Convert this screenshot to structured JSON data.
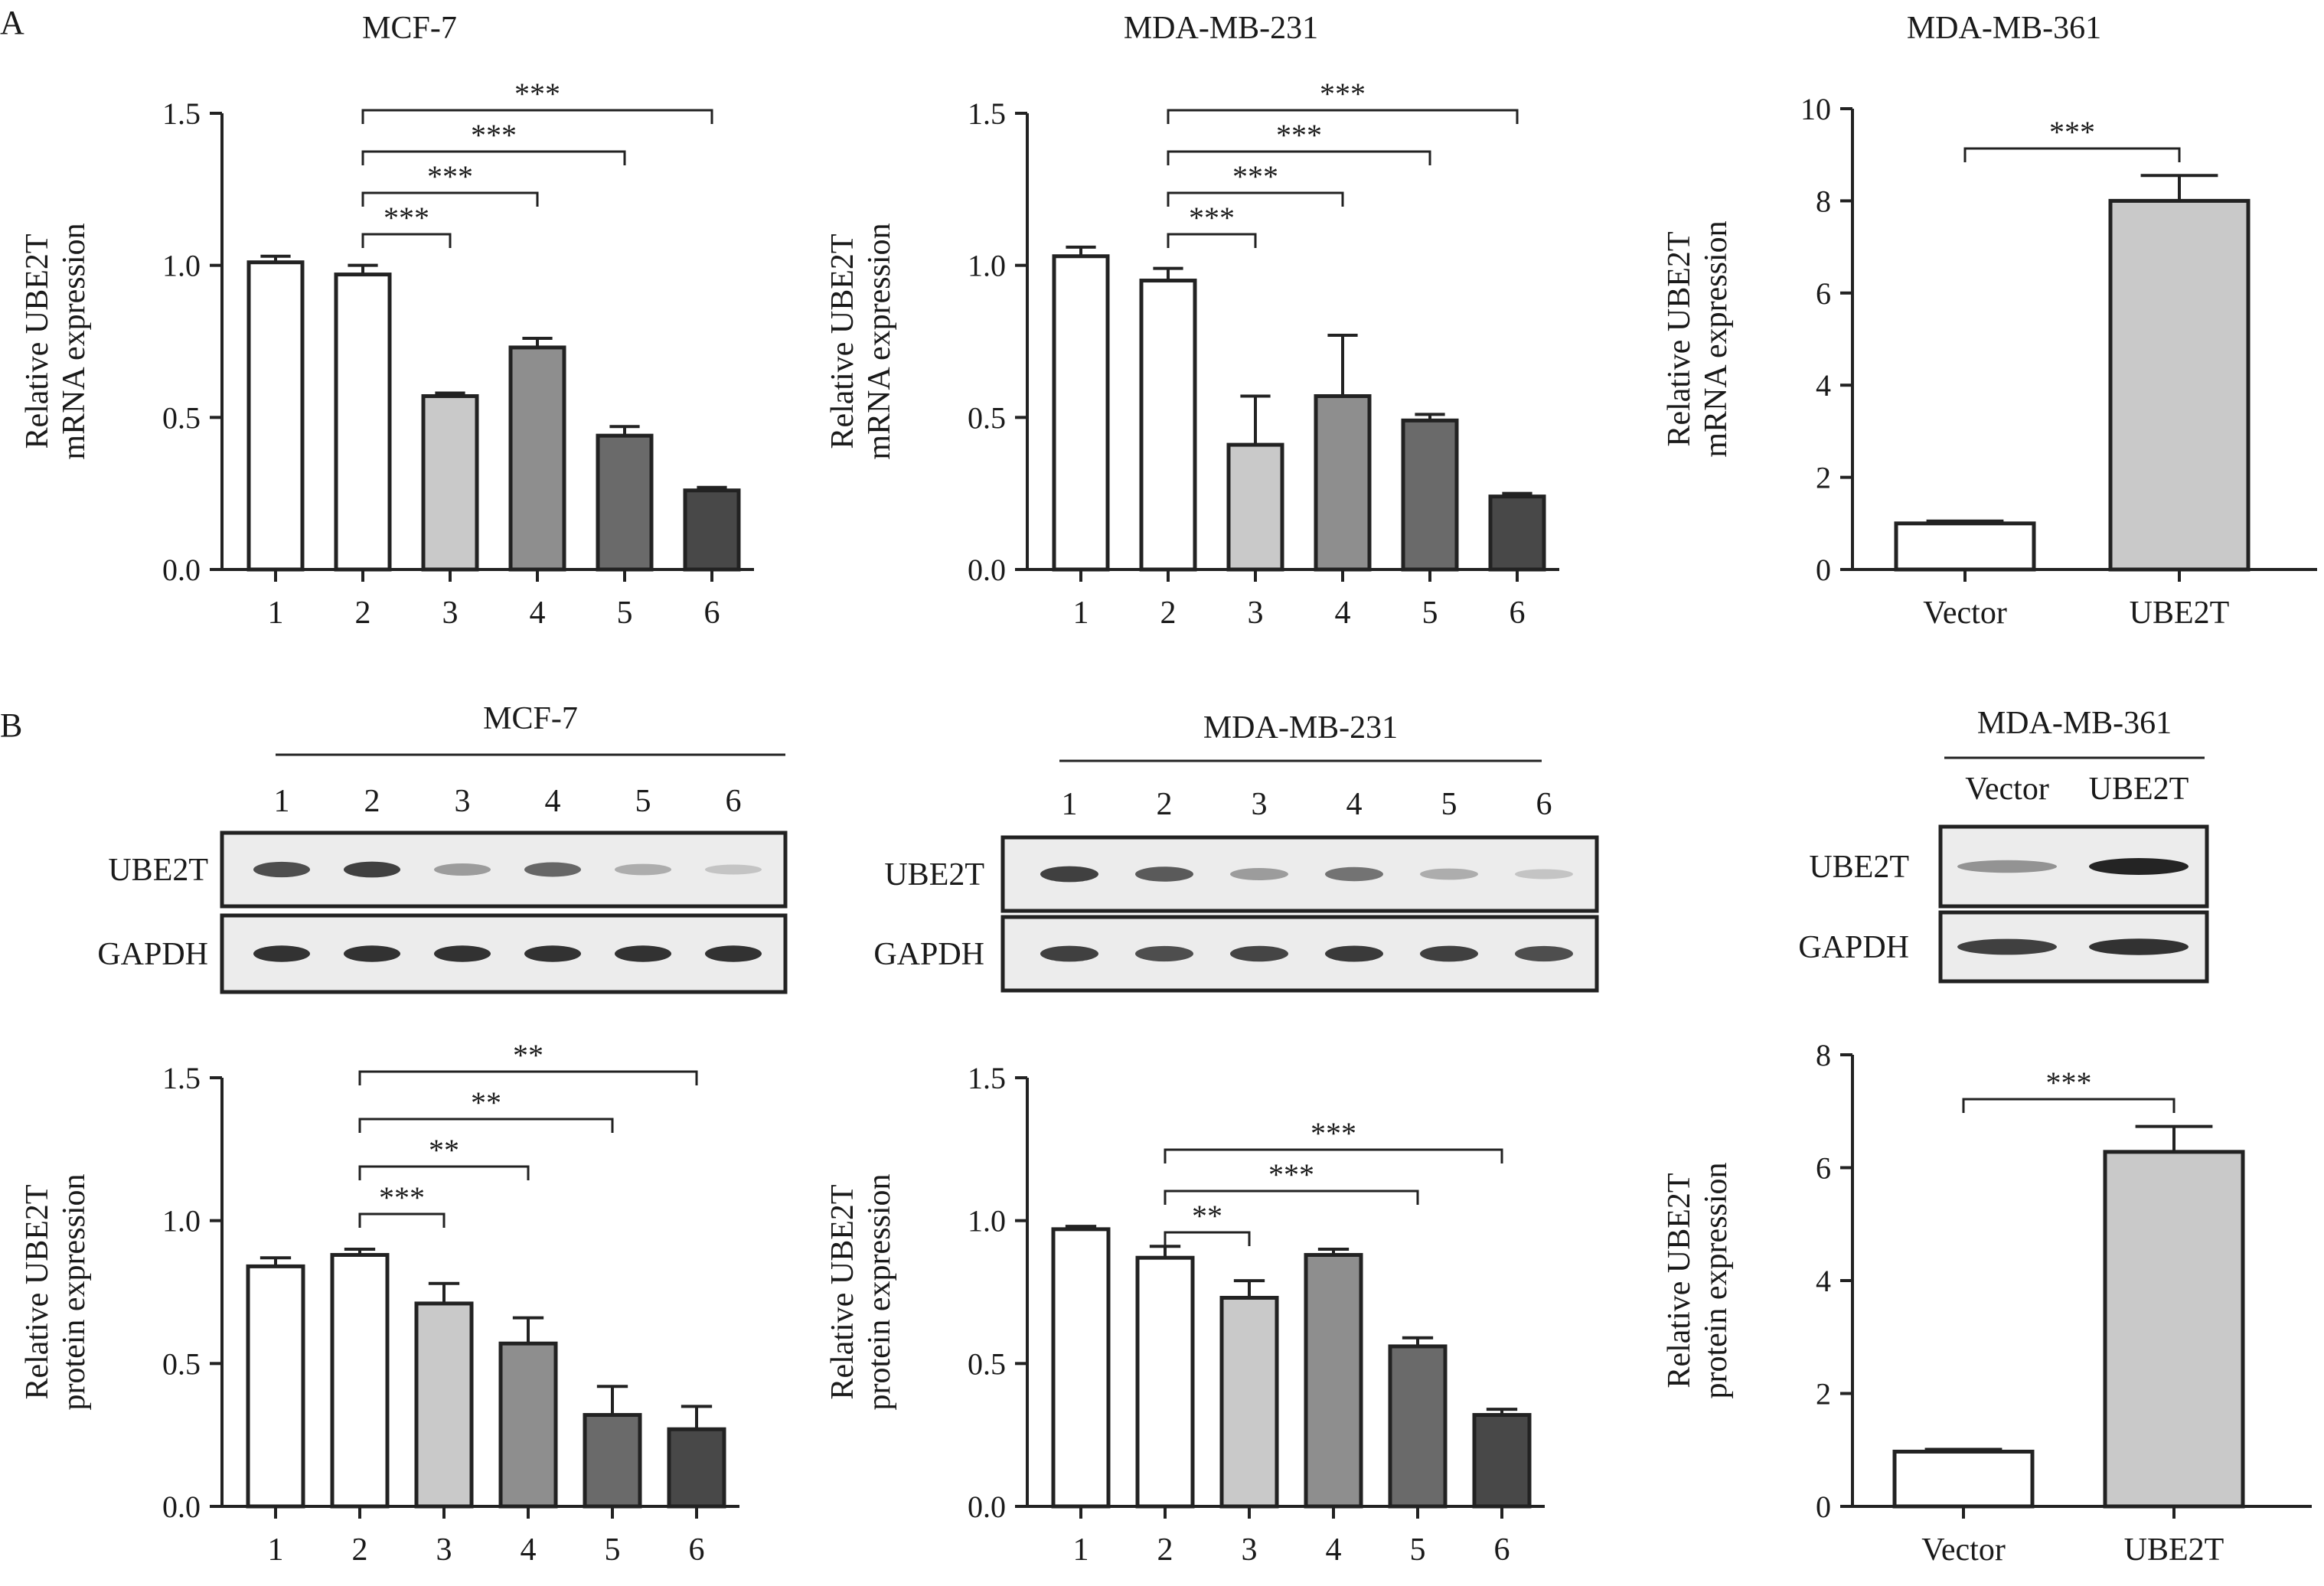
{
  "section_labels": {
    "a": "A",
    "b": "B"
  },
  "colors": [
    "#ffffff",
    "#ffffff",
    "#c9c9c9",
    "#8e8e8e",
    "#6a6a6a",
    "#484848"
  ],
  "chart_data": [
    {
      "id": "mrna_mcf7",
      "type": "bar",
      "title": "MCF-7",
      "ylabel": [
        "Relative UBE2T",
        "mRNA expression"
      ],
      "categories": [
        "1",
        "2",
        "3",
        "4",
        "5",
        "6"
      ],
      "values": [
        1.01,
        0.97,
        0.57,
        0.73,
        0.44,
        0.26
      ],
      "errors": [
        0.02,
        0.03,
        0.01,
        0.03,
        0.03,
        0.01
      ],
      "ylim": [
        0,
        1.5
      ],
      "yticks": [
        "0.0",
        "0.5",
        "1.0",
        "1.5"
      ],
      "ytick_values": [
        0,
        0.5,
        1.0,
        1.5
      ],
      "significance": [
        {
          "from": "2",
          "to": "3",
          "label": "***"
        },
        {
          "from": "2",
          "to": "4",
          "label": "***"
        },
        {
          "from": "2",
          "to": "5",
          "label": "***"
        },
        {
          "from": "2",
          "to": "6",
          "label": "***"
        }
      ]
    },
    {
      "id": "mrna_mda231",
      "type": "bar",
      "title": "MDA-MB-231",
      "ylabel": [
        "Relative UBE2T",
        "mRNA expression"
      ],
      "categories": [
        "1",
        "2",
        "3",
        "4",
        "5",
        "6"
      ],
      "values": [
        1.03,
        0.95,
        0.41,
        0.57,
        0.49,
        0.24
      ],
      "errors": [
        0.03,
        0.04,
        0.16,
        0.2,
        0.02,
        0.01
      ],
      "ylim": [
        0,
        1.5
      ],
      "yticks": [
        "0.0",
        "0.5",
        "1.0",
        "1.5"
      ],
      "ytick_values": [
        0,
        0.5,
        1.0,
        1.5
      ],
      "significance": [
        {
          "from": "2",
          "to": "3",
          "label": "***"
        },
        {
          "from": "2",
          "to": "4",
          "label": "***"
        },
        {
          "from": "2",
          "to": "5",
          "label": "***"
        },
        {
          "from": "2",
          "to": "6",
          "label": "***"
        }
      ]
    },
    {
      "id": "mrna_mda361",
      "type": "bar",
      "title": "MDA-MB-361",
      "ylabel": [
        "Relative UBE2T",
        "mRNA expression"
      ],
      "categories": [
        "Vector",
        "UBE2T"
      ],
      "values": [
        1.0,
        8.0
      ],
      "errors": [
        0.05,
        0.55
      ],
      "ylim": [
        0,
        10
      ],
      "yticks": [
        "0",
        "2",
        "4",
        "6",
        "8",
        "10"
      ],
      "ytick_values": [
        0,
        2,
        4,
        6,
        8,
        10
      ],
      "significance": [
        {
          "from": "Vector",
          "to": "UBE2T",
          "label": "***"
        }
      ]
    },
    {
      "id": "prot_mcf7",
      "type": "bar",
      "title": "",
      "ylabel": [
        "Relative UBE2T",
        "protein expression"
      ],
      "categories": [
        "1",
        "2",
        "3",
        "4",
        "5",
        "6"
      ],
      "values": [
        0.84,
        0.88,
        0.71,
        0.57,
        0.32,
        0.27
      ],
      "errors": [
        0.03,
        0.02,
        0.07,
        0.09,
        0.1,
        0.08
      ],
      "ylim": [
        0,
        1.5
      ],
      "yticks": [
        "0.0",
        "0.5",
        "1.0",
        "1.5"
      ],
      "ytick_values": [
        0,
        0.5,
        1.0,
        1.5
      ],
      "significance": [
        {
          "from": "2",
          "to": "3",
          "label": "***"
        },
        {
          "from": "2",
          "to": "4",
          "label": "**"
        },
        {
          "from": "2",
          "to": "5",
          "label": "**"
        },
        {
          "from": "2",
          "to": "6",
          "label": "**"
        }
      ]
    },
    {
      "id": "prot_mda231",
      "type": "bar",
      "title": "",
      "ylabel": [
        "Relative UBE2T",
        "protein expression"
      ],
      "categories": [
        "1",
        "2",
        "3",
        "4",
        "5",
        "6"
      ],
      "values": [
        0.97,
        0.87,
        0.73,
        0.88,
        0.56,
        0.32
      ],
      "errors": [
        0.01,
        0.04,
        0.06,
        0.02,
        0.03,
        0.02
      ],
      "ylim": [
        0,
        1.5
      ],
      "yticks": [
        "0.0",
        "0.5",
        "1.0",
        "1.5"
      ],
      "ytick_values": [
        0,
        0.5,
        1.0,
        1.5
      ],
      "significance": [
        {
          "from": "2",
          "to": "3",
          "label": "**"
        },
        {
          "from": "2",
          "to": "5",
          "label": "***"
        },
        {
          "from": "2",
          "to": "6",
          "label": "***"
        }
      ]
    },
    {
      "id": "prot_mda361",
      "type": "bar",
      "title": "",
      "ylabel": [
        "Relative UBE2T",
        "protein expression"
      ],
      "categories": [
        "Vector",
        "UBE2T"
      ],
      "values": [
        0.97,
        6.28
      ],
      "errors": [
        0.04,
        0.45
      ],
      "ylim": [
        0,
        8
      ],
      "yticks": [
        "0",
        "2",
        "4",
        "6",
        "8"
      ],
      "ytick_values": [
        0,
        2,
        4,
        6,
        8
      ],
      "significance": [
        {
          "from": "Vector",
          "to": "UBE2T",
          "label": "***"
        }
      ]
    }
  ],
  "blots": [
    {
      "id": "blot_mcf7",
      "title": "MCF-7",
      "lanes": [
        "1",
        "2",
        "3",
        "4",
        "5",
        "6"
      ],
      "rows": [
        {
          "label": "UBE2T",
          "intensity": [
            0.85,
            0.9,
            0.5,
            0.75,
            0.4,
            0.25
          ]
        },
        {
          "label": "GAPDH",
          "intensity": [
            0.95,
            0.95,
            0.95,
            0.95,
            0.95,
            0.95
          ]
        }
      ]
    },
    {
      "id": "blot_mda231",
      "title": "MDA-MB-231",
      "lanes": [
        "1",
        "2",
        "3",
        "4",
        "5",
        "6"
      ],
      "rows": [
        {
          "label": "UBE2T",
          "intensity": [
            0.9,
            0.8,
            0.5,
            0.7,
            0.4,
            0.25
          ]
        },
        {
          "label": "GAPDH",
          "intensity": [
            0.9,
            0.85,
            0.88,
            0.92,
            0.9,
            0.85
          ]
        }
      ]
    },
    {
      "id": "blot_mda361",
      "title": "MDA-MB-361",
      "lanes": [
        "Vector",
        "UBE2T"
      ],
      "rows": [
        {
          "label": "UBE2T",
          "intensity": [
            0.55,
            1.0
          ]
        },
        {
          "label": "GAPDH",
          "intensity": [
            0.9,
            0.95
          ]
        }
      ]
    }
  ]
}
